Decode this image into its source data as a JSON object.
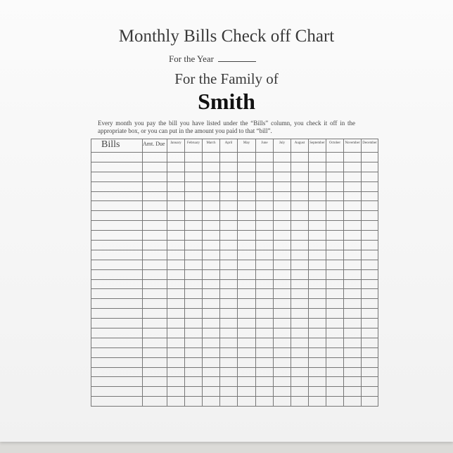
{
  "document": {
    "title": "Monthly Bills Check off Chart",
    "year_label": "For the Year",
    "family_label": "For the Family of",
    "family_name": "Smith",
    "instructions": "Every month you pay the bill you have listed under the “Bills” column, you check it off in the appropriate box, or you can put in the amount you paid to that “bill”."
  },
  "table": {
    "columns": [
      "Bills",
      "Amt. Due",
      "January",
      "February",
      "March",
      "April",
      "May",
      "June",
      "July",
      "August",
      "September",
      "October",
      "November",
      "December"
    ],
    "empty_rows": 26
  }
}
